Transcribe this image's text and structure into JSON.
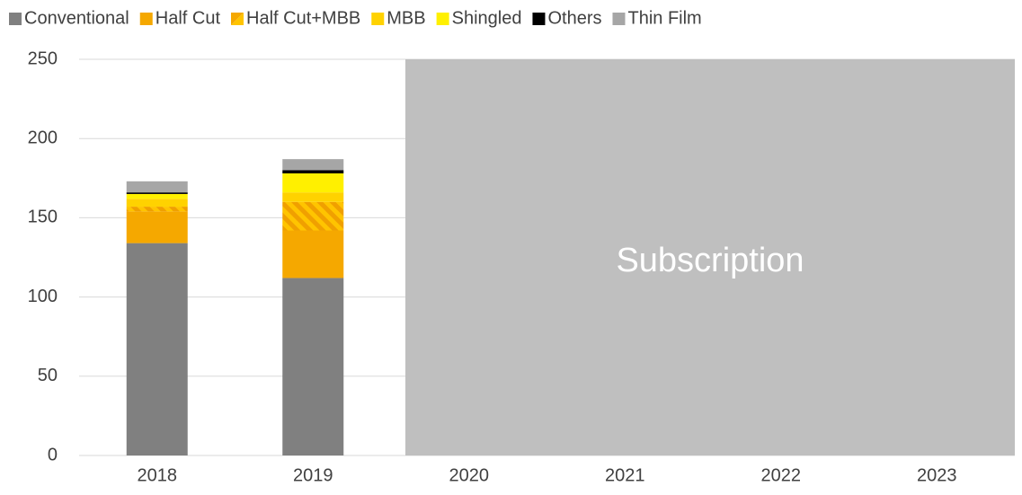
{
  "chart_data": {
    "type": "stacked_bar",
    "categories": [
      "2018",
      "2019",
      "2020",
      "2021",
      "2022",
      "2023"
    ],
    "series": [
      {
        "name": "Conventional",
        "color": "#808080",
        "values": [
          134,
          112,
          null,
          null,
          null,
          null
        ]
      },
      {
        "name": "Half Cut",
        "color": "#f5a800",
        "values": [
          20,
          30,
          null,
          null,
          null,
          null
        ]
      },
      {
        "name": "Half Cut+MBB",
        "color": "#f5a800",
        "hatch": true,
        "values": [
          3,
          18,
          null,
          null,
          null,
          null
        ]
      },
      {
        "name": "MBB",
        "color": "#ffd200",
        "values": [
          5,
          6,
          null,
          null,
          null,
          null
        ]
      },
      {
        "name": "Shingled",
        "color": "#fff000",
        "values": [
          3,
          12,
          null,
          null,
          null,
          null
        ]
      },
      {
        "name": "Others",
        "color": "#000000",
        "values": [
          1,
          2,
          null,
          null,
          null,
          null
        ]
      },
      {
        "name": "Thin Film",
        "color": "#a6a6a6",
        "values": [
          7,
          7,
          null,
          null,
          null,
          null
        ]
      }
    ],
    "ylim": [
      0,
      250
    ],
    "yticks": [
      0,
      50,
      100,
      150,
      200,
      250
    ],
    "grid": true,
    "legend": "top",
    "overlay_text": "Subscription"
  }
}
